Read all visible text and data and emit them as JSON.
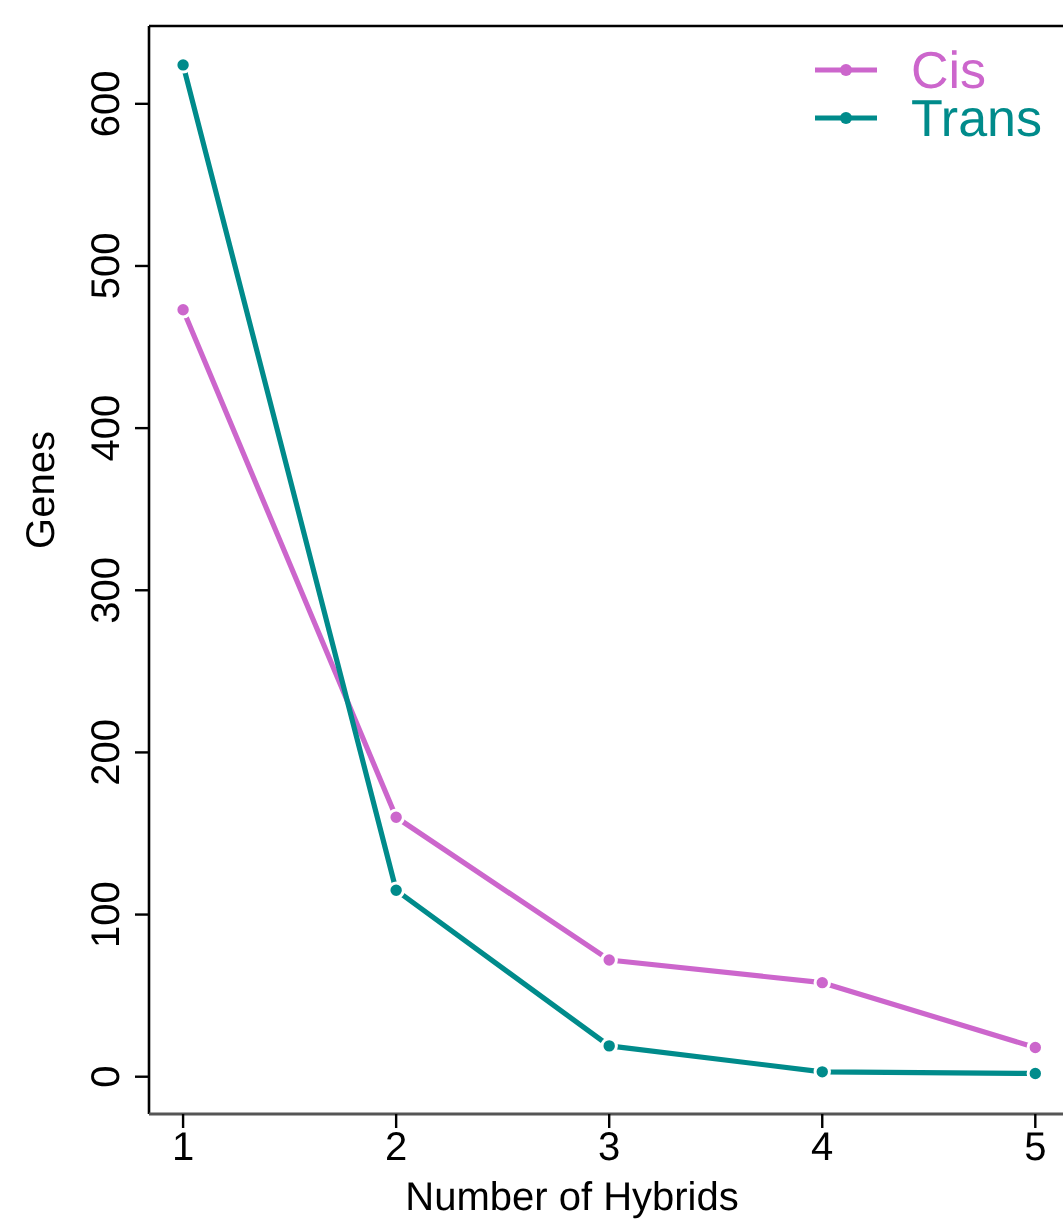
{
  "chart_data": {
    "type": "line",
    "xlabel": "Number of Hybrids",
    "ylabel": "Genes",
    "x": [
      1,
      2,
      3,
      4,
      5
    ],
    "series": [
      {
        "name": "Cis",
        "color": "#cc66cc",
        "values": [
          473,
          160,
          72,
          58,
          18
        ]
      },
      {
        "name": "Trans",
        "color": "#008b8b",
        "values": [
          624,
          115,
          19,
          3,
          2
        ]
      }
    ],
    "xlim": [
      0.84,
      5.13
    ],
    "xticks": [
      1,
      2,
      3,
      4,
      5
    ],
    "ylim": [
      -23,
      648
    ],
    "yticks": [
      0,
      100,
      200,
      300,
      400,
      500,
      600
    ],
    "legend": "top right",
    "marker": "circle",
    "line_style": "solid"
  }
}
